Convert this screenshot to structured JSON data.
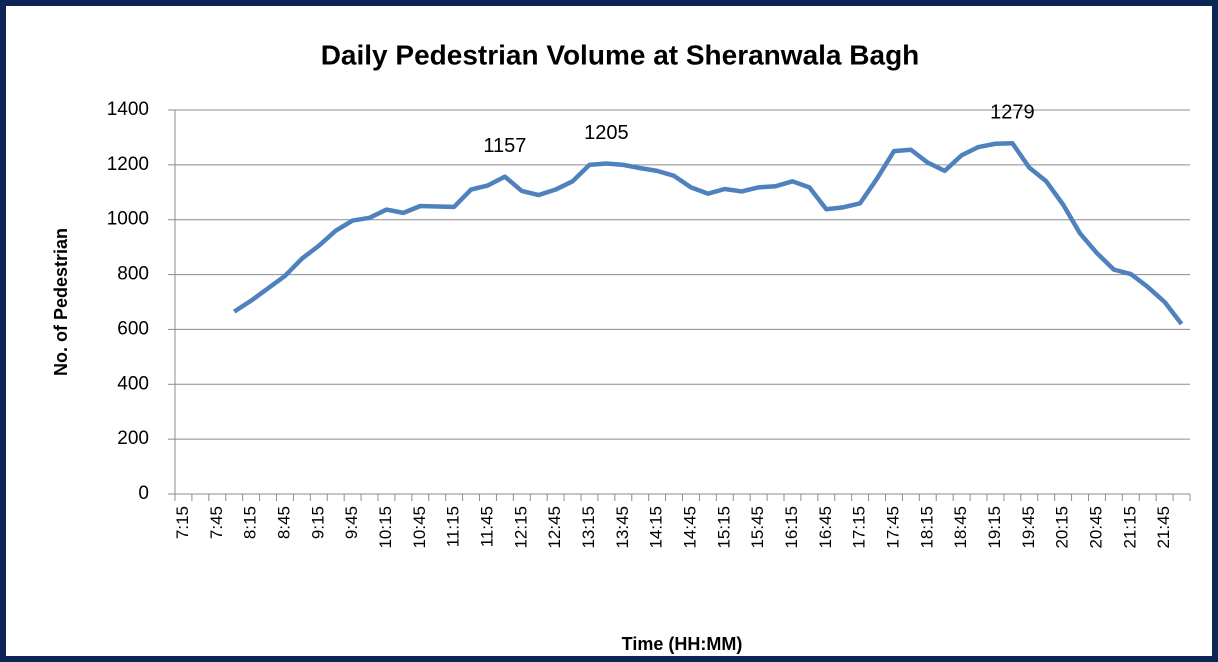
{
  "chart_data": {
    "type": "line",
    "title": "Daily Pedestrian Volume at Sheranwala Bagh",
    "x_label": "Time (HH:MM)",
    "y_label": "No. of Pedestrian",
    "categories": [
      "7:15",
      null,
      "7:45",
      null,
      "8:15",
      null,
      "8:45",
      null,
      "9:15",
      null,
      "9:45",
      null,
      "10:15",
      null,
      "10:45",
      null,
      "11:15",
      null,
      "11:45",
      null,
      "12:15",
      null,
      "12:45",
      null,
      "13:15",
      null,
      "13:45",
      null,
      "14:15",
      null,
      "14:45",
      null,
      "15:15",
      null,
      "15:45",
      null,
      "16:15",
      null,
      "16:45",
      null,
      "17:15",
      null,
      "17:45",
      null,
      "18:15",
      null,
      "18:45",
      null,
      "19:15",
      null,
      "19:45",
      null,
      "20:15",
      null,
      "20:45",
      null,
      "21:15",
      null,
      "21:45",
      null
    ],
    "values": [
      null,
      null,
      null,
      665,
      705,
      750,
      795,
      858,
      905,
      960,
      997,
      1007,
      1037,
      1025,
      1050,
      1048,
      1047,
      1110,
      1125,
      1157,
      1105,
      1090,
      1110,
      1140,
      1200,
      1205,
      1200,
      1188,
      1178,
      1160,
      1118,
      1095,
      1112,
      1103,
      1118,
      1122,
      1140,
      1118,
      1038,
      1045,
      1060,
      1150,
      1250,
      1255,
      1208,
      1178,
      1235,
      1265,
      1277,
      1279,
      1190,
      1140,
      1055,
      950,
      878,
      818,
      802,
      755,
      700,
      620
    ],
    "labeled_points": [
      19,
      25,
      49
    ],
    "color": "#4f81bd",
    "ylim": [
      0,
      1400
    ],
    "yticks": [
      0,
      200,
      400,
      600,
      800,
      1000,
      1200,
      1400
    ],
    "grid": true,
    "border_color": "#0d2554"
  }
}
